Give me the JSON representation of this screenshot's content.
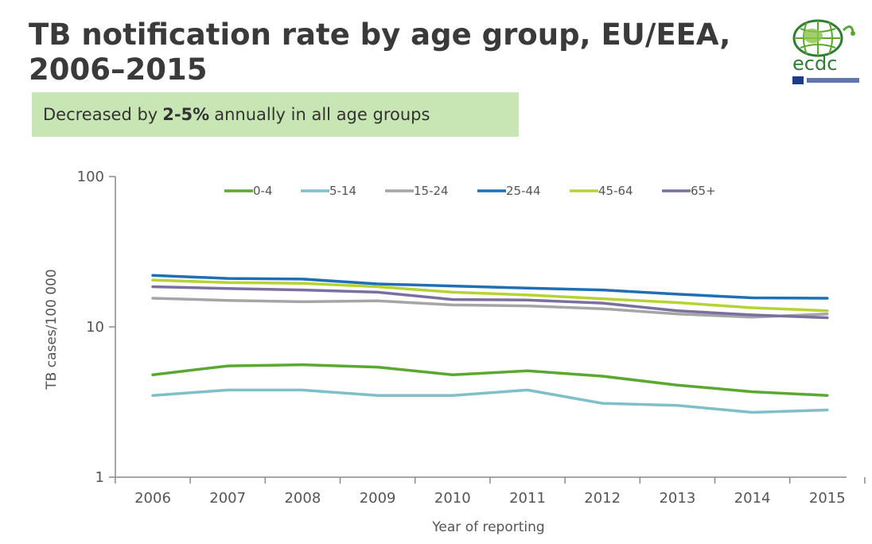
{
  "slide": {
    "title_line1": "TB notification rate by age group, EU/EEA,",
    "title_line2": "2006–2015",
    "highlight": {
      "prefix": "Decreased by",
      "emphasis": "2-5%",
      "suffix": "annually in all age groups",
      "background": "#c8e6b4"
    },
    "logo": {
      "text": "ecdc",
      "icon": "globe-logo-icon",
      "colors": [
        "#2e7d32",
        "#8bc34a",
        "#1e3a8a"
      ]
    }
  },
  "chart_data": {
    "type": "line",
    "x": [
      "2006",
      "2007",
      "2008",
      "2009",
      "2010",
      "2011",
      "2012",
      "2013",
      "2014",
      "2015"
    ],
    "y_scale": "log",
    "ylim": [
      1,
      100
    ],
    "y_ticks": [
      "1",
      "10",
      "100"
    ],
    "xlabel": "Year of reporting",
    "ylabel": "TB cases/100 000",
    "legend_position": "top",
    "grid": false,
    "series": [
      {
        "name": "0-4",
        "color": "#5aa832",
        "values": [
          4.8,
          5.5,
          5.6,
          5.4,
          4.8,
          5.1,
          4.7,
          4.1,
          3.7,
          3.5
        ]
      },
      {
        "name": "5-14",
        "color": "#7fbfc9",
        "values": [
          3.5,
          3.8,
          3.8,
          3.5,
          3.5,
          3.8,
          3.1,
          3.0,
          2.7,
          2.8
        ]
      },
      {
        "name": "15-24",
        "color": "#a5a5a5",
        "values": [
          15.5,
          15.0,
          14.7,
          14.9,
          14.0,
          13.8,
          13.2,
          12.2,
          11.6,
          12.2
        ]
      },
      {
        "name": "25-44",
        "color": "#1f6fb4",
        "values": [
          22.0,
          21.0,
          20.8,
          19.3,
          18.7,
          18.1,
          17.6,
          16.5,
          15.6,
          15.5
        ]
      },
      {
        "name": "45-64",
        "color": "#b5d334",
        "values": [
          20.5,
          19.7,
          19.5,
          18.5,
          17.0,
          16.3,
          15.4,
          14.5,
          13.4,
          12.8
        ]
      },
      {
        "name": "65+",
        "color": "#7a6f9e",
        "values": [
          18.5,
          18.0,
          17.6,
          17.0,
          15.2,
          15.1,
          14.4,
          12.8,
          12.0,
          11.5
        ]
      }
    ]
  }
}
